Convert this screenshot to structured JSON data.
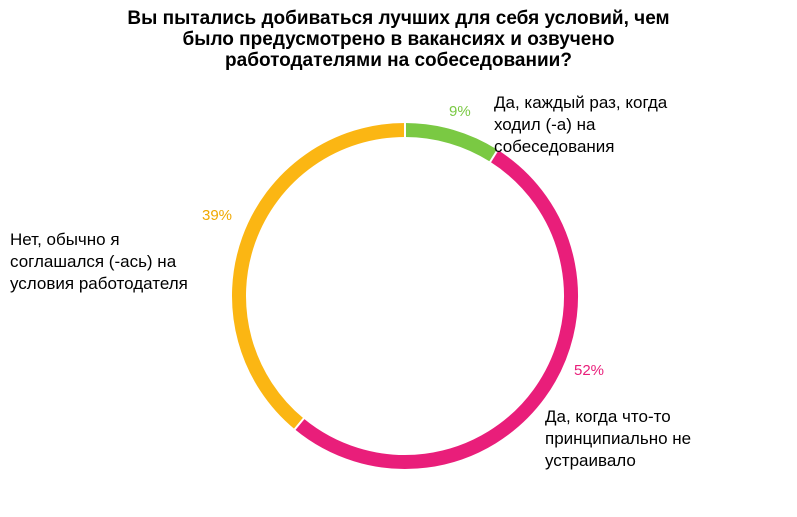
{
  "chart_data": {
    "type": "pie",
    "title_lines": [
      "Вы пытались добиваться лучших для себя условий, чем",
      "было предусмотрено в вакансиях и озвучено",
      "работодателями на собеседовании?"
    ],
    "slices": [
      {
        "value": 9,
        "pct_label": "9%",
        "label_lines": [
          "Да, каждый раз, когда",
          "ходил (-а) на",
          "собеседования"
        ],
        "color": "#7ac943"
      },
      {
        "value": 52,
        "pct_label": "52%",
        "label_lines": [
          "Да, когда что-то",
          "принципиально  не",
          "устраивало"
        ],
        "color": "#e91e7a"
      },
      {
        "value": 39,
        "pct_label": "39%",
        "label_lines": [
          "Нет,  обычно я",
          "соглашался  (-ась) на",
          "условия  работодателя"
        ],
        "color": "#fbb613"
      }
    ]
  }
}
